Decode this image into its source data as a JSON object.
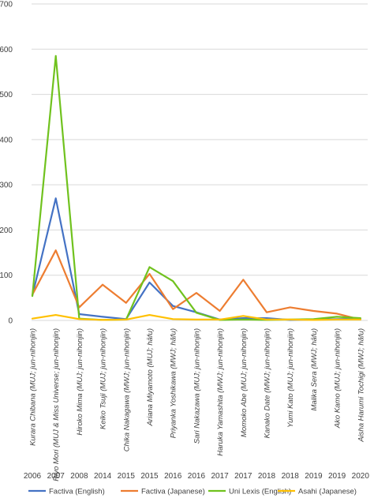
{
  "chart_data": {
    "type": "line",
    "categories": [
      {
        "name": "Kurara Chibana (MUJ; jun-nihonjin)",
        "year": "2006"
      },
      {
        "name": "Riyo Mori (MUJ & Miss Universe; jun-nihonjin)",
        "year": "2007"
      },
      {
        "name": "Hiroko Mima (MUJ; jun-nihonjin)",
        "year": "2008"
      },
      {
        "name": "Keiko Tsuji (MUJ; jun-nihonjin)",
        "year": "2014"
      },
      {
        "name": "Chika Nakagawa (MWJ; jun-nihonjin)",
        "year": "2015"
      },
      {
        "name": "Ariana Miyamoto (MUJ; hāfu)",
        "year": "2015"
      },
      {
        "name": "Priyanka Yoshikawa (MWJ; hāfu)",
        "year": "2016"
      },
      {
        "name": "Sari Nakazawa (MUJ; jun-nihonjin)",
        "year": "2016"
      },
      {
        "name": "Haruka Yamashita (MWJ; jun-nihonjin)",
        "year": "2017"
      },
      {
        "name": "Momoko Abe (MUJ; jun-nihonjin)",
        "year": "2017"
      },
      {
        "name": "Kanako Date (MWJ; jun-nihonjin)",
        "year": "2018"
      },
      {
        "name": "Yumi Kato (MUJ; jun-nihonjin)",
        "year": "2018"
      },
      {
        "name": "Malika Sera (MWJ; hāfu)",
        "year": "2019"
      },
      {
        "name": "Ako Kamo (MUJ; jun-nihonjin)",
        "year": "2019"
      },
      {
        "name": "Aisha Harumi Tochigi (MWJ; hāfu)",
        "year": "2020"
      }
    ],
    "series": [
      {
        "name": "Factiva (English)",
        "color": "#4472c4",
        "values": [
          55,
          270,
          14,
          8,
          3,
          84,
          32,
          18,
          2,
          5,
          5,
          1,
          2,
          3,
          4
        ]
      },
      {
        "name": "Factiva (Japanese)",
        "color": "#ed7d31",
        "values": [
          57,
          155,
          29,
          79,
          39,
          103,
          25,
          61,
          21,
          90,
          18,
          29,
          21,
          15,
          2
        ]
      },
      {
        "name": "Uni Lexis (English)",
        "color": "#70c21e",
        "values": [
          54,
          585,
          4,
          1,
          2,
          118,
          87,
          17,
          1,
          2,
          1,
          2,
          3,
          8,
          5
        ]
      },
      {
        "name": "Asahi (Japanese)",
        "color": "#ffc000",
        "values": [
          4,
          12,
          3,
          1,
          2,
          12,
          3,
          2,
          2,
          10,
          2,
          2,
          1,
          2,
          2
        ]
      }
    ],
    "yticks": [
      "0",
      "100",
      "200",
      "300",
      "400",
      "500",
      "600",
      "700"
    ],
    "ylim": [
      0,
      700
    ],
    "grid": true,
    "legend_position": "bottom"
  }
}
